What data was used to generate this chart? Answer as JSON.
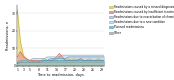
{
  "title": "",
  "xlabel": "Time to readmission, days",
  "ylabel": "Readmissions, n",
  "days": [
    1,
    2,
    3,
    4,
    5,
    6,
    7,
    8,
    9,
    10,
    11,
    12,
    13,
    14,
    15,
    16,
    17,
    18,
    19,
    20,
    21,
    22,
    23,
    24,
    25,
    26,
    27,
    28,
    29,
    30
  ],
  "series": {
    "missed_diagnosis": [
      32,
      14,
      6,
      4,
      3,
      3,
      2,
      2,
      3,
      4,
      3,
      3,
      4,
      3,
      5,
      4,
      3,
      4,
      3,
      4,
      3,
      4,
      3,
      3,
      4,
      3,
      3,
      4,
      3,
      3
    ],
    "insufficient_treatment": [
      5,
      8,
      5,
      4,
      3,
      3,
      3,
      3,
      3,
      3,
      3,
      3,
      3,
      5,
      7,
      5,
      3,
      3,
      3,
      3,
      3,
      4,
      3,
      3,
      3,
      3,
      3,
      3,
      3,
      3
    ],
    "chronic_illness": [
      2,
      2,
      3,
      3,
      2,
      2,
      3,
      2,
      3,
      3,
      3,
      4,
      4,
      4,
      4,
      4,
      4,
      5,
      5,
      5,
      5,
      5,
      5,
      5,
      5,
      5,
      5,
      5,
      5,
      5
    ],
    "new_condition": [
      2,
      3,
      3,
      3,
      3,
      4,
      4,
      4,
      4,
      4,
      5,
      5,
      5,
      5,
      5,
      6,
      6,
      6,
      6,
      6,
      6,
      6,
      6,
      6,
      6,
      6,
      6,
      6,
      6,
      6
    ],
    "planned": [
      1,
      2,
      2,
      2,
      2,
      2,
      2,
      2,
      2,
      3,
      3,
      3,
      3,
      3,
      3,
      3,
      3,
      3,
      3,
      3,
      3,
      3,
      3,
      3,
      3,
      3,
      3,
      3,
      3,
      3
    ],
    "other": [
      1,
      2,
      2,
      2,
      2,
      2,
      2,
      2,
      2,
      2,
      2,
      2,
      2,
      2,
      2,
      2,
      2,
      2,
      2,
      2,
      2,
      2,
      2,
      2,
      2,
      2,
      2,
      2,
      2,
      2
    ]
  },
  "line_colors": {
    "missed_diagnosis": "#c8b040",
    "insufficient_treatment": "#d06858",
    "chronic_illness": "#7898b8",
    "new_condition": "#88a8c0",
    "planned": "#40a0c0",
    "other": "#909888"
  },
  "fill_colors": {
    "missed_diagnosis": "#e8d870",
    "insufficient_treatment": "#e8a090",
    "chronic_illness": "#b8d0e0",
    "new_condition": "#c8dcea",
    "planned": "#78c0d8",
    "other": "#b0c0a8"
  },
  "legend_labels": [
    "Readmissions caused by a missed diagnosis",
    "Readmissions caused by insufficient treatment",
    "Readmissions due to exacerbation of chronic illness",
    "Readmissions due to a new condition",
    "Planned readmissions",
    "Other"
  ],
  "ylim": [
    0,
    35
  ],
  "xlim": [
    1,
    30
  ],
  "yticks": [
    0,
    10,
    20,
    30
  ],
  "xticks": [
    1,
    3,
    5,
    8,
    11,
    14,
    17,
    20,
    23,
    26,
    29
  ]
}
